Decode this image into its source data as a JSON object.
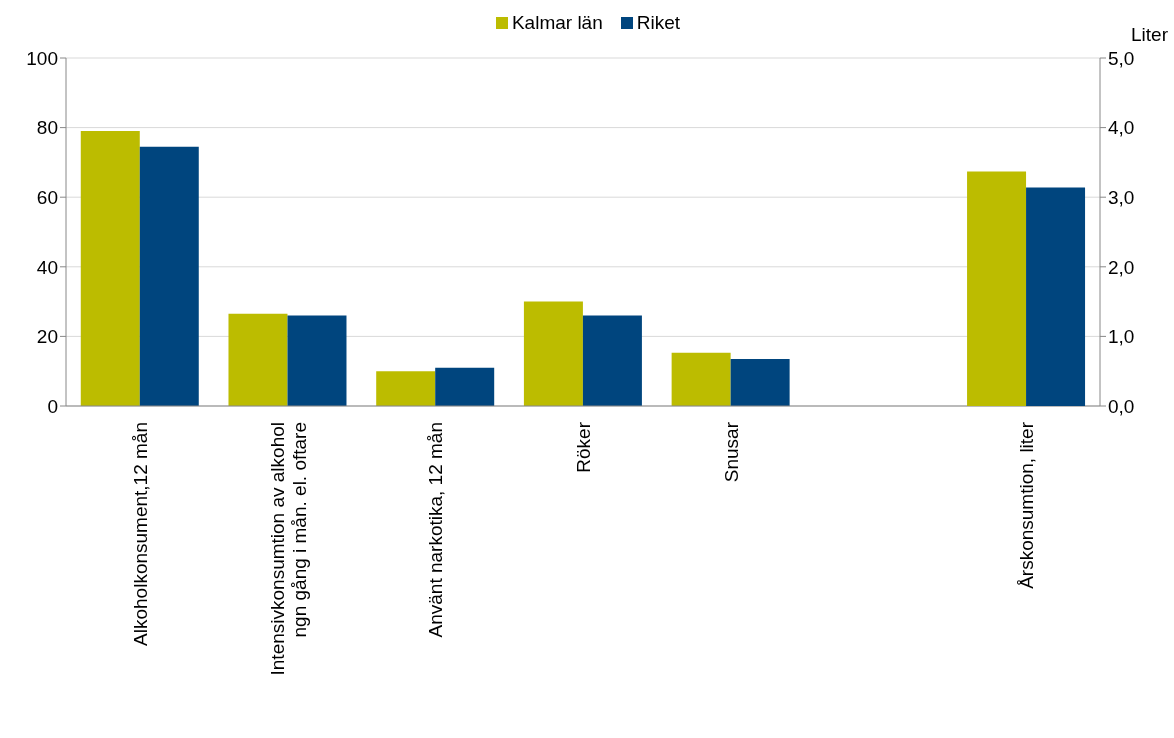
{
  "chart_data": {
    "type": "bar",
    "y2label": "Liter",
    "categories": [
      "Alkoholkonsument,12 mån",
      "Intensivkonsumtion av alkohol ngn gång i mån. el. oftare",
      "Använt narkotika, 12 mån",
      "Röker",
      "Snusar",
      null,
      "Årskonsumtion, liter"
    ],
    "series": [
      {
        "name": "Kalmar län",
        "color": "#bcbc00",
        "values": [
          79,
          26.5,
          10,
          30,
          15.3,
          null,
          null
        ]
      },
      {
        "name": "Riket",
        "color": "#00457e",
        "values": [
          74.5,
          26,
          11,
          26,
          13.5,
          null,
          null
        ]
      },
      {
        "color": "#bcbc00",
        "axis": "y2",
        "values": [
          null,
          null,
          null,
          null,
          null,
          null,
          3.37
        ]
      },
      {
        "color": "#00457e",
        "axis": "y2",
        "values": [
          null,
          null,
          null,
          null,
          null,
          null,
          3.14
        ]
      }
    ],
    "ylim": [
      0,
      100
    ],
    "yticks": [
      0,
      20,
      40,
      60,
      80,
      100
    ],
    "y2lim": [
      0,
      5
    ],
    "y2ticks": [
      {
        "value": 0,
        "label": "0,0"
      },
      {
        "value": 1,
        "label": "1,0"
      },
      {
        "value": 2,
        "label": "2,0"
      },
      {
        "value": 3,
        "label": "3,0"
      },
      {
        "value": 4,
        "label": "4,0"
      },
      {
        "value": 5,
        "label": "5,0"
      }
    ],
    "grid": "y",
    "legend": "top"
  }
}
